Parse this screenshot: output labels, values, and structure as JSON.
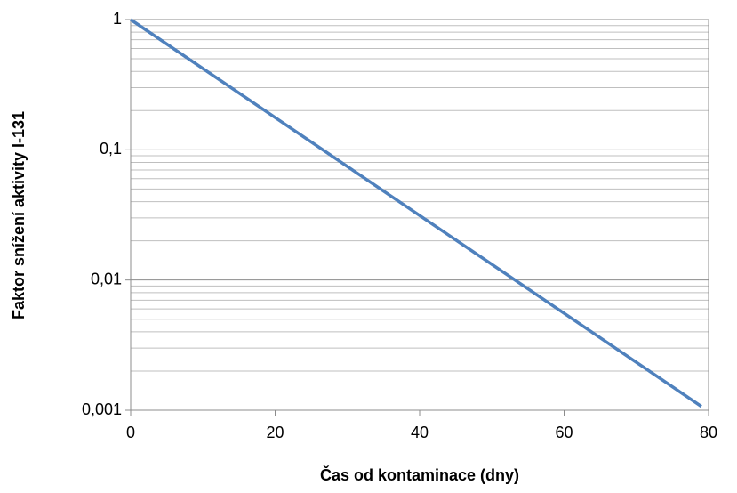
{
  "chart_data": {
    "type": "line",
    "xlabel": "Čas od kontaminace (dny)",
    "ylabel": "Faktor snížení aktivity I-131",
    "x": [
      0,
      20,
      40,
      60,
      79
    ],
    "series": [
      {
        "name": "I-131",
        "color": "#4f81bd",
        "values": [
          1,
          0.177,
          0.0313,
          0.00555,
          0.00107
        ]
      }
    ],
    "xlim": [
      0,
      80
    ],
    "xticks": [
      0,
      20,
      40,
      60,
      80
    ],
    "ylim": [
      0.001,
      1
    ],
    "yticks": [
      {
        "value": 0.001,
        "label": "0,001"
      },
      {
        "value": 0.01,
        "label": "0,01"
      },
      {
        "value": 0.1,
        "label": "0,1"
      },
      1
    ],
    "yscale": "log",
    "grid": true,
    "minor_grid": true
  }
}
